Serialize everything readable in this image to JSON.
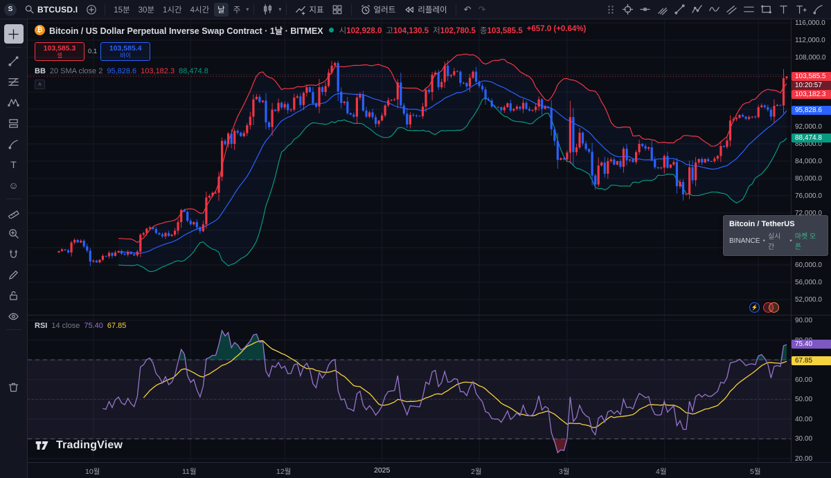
{
  "toolbar": {
    "account_initial": "S",
    "symbol": "BTCUSD.I",
    "intervals": [
      "15분",
      "30분",
      "1시간",
      "4시간",
      "날",
      "주"
    ],
    "selected_interval": "날",
    "indicators_label": "지표",
    "alert_label": "얼러트",
    "replay_label": "리플레이"
  },
  "legend": {
    "title": "Bitcoin / US Dollar Perpetual Inverse Swap Contract · 1날 · BITMEX",
    "ohlc": {
      "o_label": "시",
      "o": "102,928.0",
      "h_label": "고",
      "h": "104,130.5",
      "l_label": "저",
      "l": "102,780.5",
      "c_label": "종",
      "c": "103,585.5",
      "change": "+657.0 (+0.64%)"
    },
    "sell_price": "103,585.3",
    "sell_label": "셀",
    "spread": "0.1",
    "buy_price": "103,585.4",
    "buy_label": "바이",
    "bb_title": "BB",
    "bb_params": "20 SMA close 2",
    "bb_basis": "95,828.6",
    "bb_upper": "103,182.3",
    "bb_lower": "88,474.8",
    "collapse_glyph": "˄"
  },
  "rsi_legend": {
    "title": "RSI",
    "params": "14 close",
    "value": "75.40",
    "ma": "67.85"
  },
  "price_axis": {
    "labels": [
      "116,000.0",
      "112,000.0",
      "108,000.0",
      "104,000.0",
      "100,000.0",
      "96,000.0",
      "92,000.0",
      "88,000.0",
      "84,000.0",
      "80,000.0",
      "76,000.0",
      "72,000.0",
      "68,000.0",
      "64,000.0",
      "60,000.0",
      "56,000.0",
      "52,000.0"
    ],
    "last": "103,585.5",
    "countdown": "10:20:57",
    "bb_upper": "103,182.3",
    "bb_basis": "95,828.6",
    "bb_lower": "88,474.8"
  },
  "rsi_axis": {
    "labels": [
      "90.00",
      "80.00",
      "70.00",
      "60.00",
      "50.00",
      "40.00",
      "30.00",
      "20.00"
    ],
    "value": "75.40",
    "ma": "67.85"
  },
  "tooltip": {
    "title": "Bitcoin / TetherUS",
    "exchange": "BINANCE",
    "dot": "•",
    "realtime": "실시간",
    "status": "마켓 오픈"
  },
  "watermark": "TradingView",
  "time_axis": [
    {
      "label": "10월",
      "idx": 11
    },
    {
      "label": "11월",
      "idx": 42
    },
    {
      "label": "12월",
      "idx": 72
    },
    {
      "label": "2025",
      "idx": 103
    },
    {
      "label": "2월",
      "idx": 134
    },
    {
      "label": "3월",
      "idx": 162
    },
    {
      "label": "4월",
      "idx": 193
    },
    {
      "label": "5월",
      "idx": 223
    }
  ],
  "colors": {
    "up": "#f23645",
    "down": "#2962ff",
    "bb_basis": "#2962ff",
    "bb_upper": "#f23645",
    "bb_lower": "#089981",
    "band_fill": "rgba(41,98,255,0.05)",
    "rsi": "#9575cd",
    "rsi_ma": "#f5d33e",
    "rsi_band": "rgba(149,117,205,0.09)",
    "overbought_fill": "rgba(8,153,129,0.35)",
    "oversold_fill": "rgba(242,54,69,0.35)",
    "grid": "#171b28",
    "dashed_level": "#5a5e6b",
    "last_badge": "#f23645",
    "countdown_bg": "#6b1d29",
    "basis_badge": "#2962ff",
    "lower_badge": "#089981",
    "rsi_badge": "#7e57c2",
    "rsi_ma_badge": "#f5d33e",
    "rsi_ma_badge_text": "#14161f"
  },
  "chart_data": {
    "type": "candlestick",
    "title": "Bitcoin / US Dollar Perpetual Inverse Swap Contract, 1D, BITMEX",
    "interval": "1D",
    "axis_max": 116000,
    "axis_min": 52000,
    "axis_step": 4000,
    "bb_period": 20,
    "bb_mult": 2,
    "rsi_period": 14,
    "rsi_ma_period": 14,
    "rsi_axis_max": 90,
    "rsi_axis_min": 20,
    "rsi_axis_step": 10,
    "last_close": 103585.5,
    "close": [
      63200,
      63600,
      63400,
      62900,
      65200,
      65800,
      65200,
      65600,
      64300,
      63300,
      60800,
      61000,
      60600,
      61200,
      62100,
      62000,
      62800,
      62100,
      62900,
      63200,
      62600,
      62400,
      63000,
      62500,
      62200,
      63100,
      67000,
      67400,
      68400,
      68700,
      68300,
      67400,
      67100,
      66600,
      67400,
      66700,
      67000,
      67900,
      69900,
      72700,
      72300,
      70200,
      69400,
      69900,
      68700,
      67800,
      69400,
      75600,
      76000,
      76700,
      76700,
      80400,
      88700,
      87900,
      90400,
      88000,
      91000,
      90600,
      89800,
      90500,
      92300,
      94300,
      98300,
      98900,
      97700,
      98000,
      93000,
      91900,
      95900,
      95600,
      97500,
      96400,
      97200,
      95800,
      95900,
      98700,
      99000,
      97000,
      99800,
      101100,
      100000,
      97400,
      96600,
      101100,
      100000,
      101400,
      104500,
      106100,
      106700,
      100100,
      97500,
      97800,
      95100,
      94800,
      94300,
      98700,
      99400,
      95700,
      94300,
      95300,
      94200,
      92600,
      93400,
      94600,
      96900,
      98100,
      98200,
      98300,
      102200,
      96900,
      95000,
      92500,
      94700,
      94600,
      94500,
      94400,
      96600,
      100500,
      100000,
      104000,
      104500,
      101100,
      102300,
      106100,
      103700,
      103900,
      104800,
      104700,
      102100,
      102100,
      101300,
      103300,
      104700,
      102400,
      101400,
      100600,
      98300,
      98000,
      96600,
      96500,
      96500,
      95800,
      96500,
      97400,
      95700,
      96100,
      96600,
      96100,
      97500,
      96100,
      95700,
      95800,
      96600,
      98300,
      96100,
      96600,
      96300,
      91400,
      88700,
      84300,
      84700,
      84400,
      86000,
      94200,
      86100,
      87200,
      90600,
      88100,
      86800,
      86200,
      80700,
      78600,
      83000,
      83700,
      81100,
      84000,
      84400,
      83200,
      84000,
      82700,
      86900,
      84200,
      84400,
      83800,
      86100,
      88000,
      87500,
      86900,
      87200,
      84400,
      82600,
      82400,
      82500,
      85200,
      82500,
      83200,
      83800,
      78200,
      79200,
      76300,
      76300,
      82600,
      79600,
      83700,
      84500,
      83700,
      84500,
      84000,
      84000,
      84600,
      85200,
      87500,
      87300,
      88800,
      93400,
      93700,
      94000,
      94700,
      94300,
      93800,
      94200,
      94300,
      94200,
      96500,
      96900,
      96500,
      95900,
      94300,
      96800,
      97000,
      96900,
      103200,
      103585.5
    ]
  }
}
